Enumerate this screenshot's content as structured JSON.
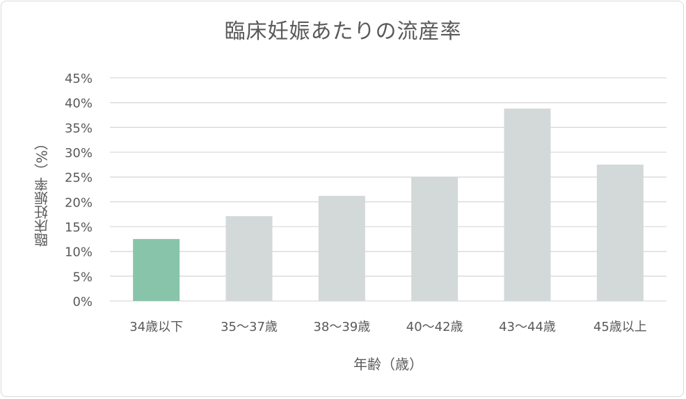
{
  "chart_data": {
    "type": "bar",
    "title": "臨床妊娠あたりの流産率",
    "xlabel": "年齢（歳）",
    "ylabel": "臨床妊娠率（%）",
    "categories": [
      "34歳以下",
      "35～37歳",
      "38～39歳",
      "40～42歳",
      "43～44歳",
      "45歳以上"
    ],
    "values": [
      12.5,
      17.1,
      21.2,
      25.0,
      38.8,
      27.5
    ],
    "ylim": [
      0,
      45
    ],
    "yticks": [
      0,
      5,
      10,
      15,
      20,
      25,
      30,
      35,
      40,
      45
    ],
    "ytick_labels": [
      "0%",
      "5%",
      "10%",
      "15%",
      "20%",
      "25%",
      "30%",
      "35%",
      "40%",
      "45%"
    ],
    "bar_colors": [
      "#88c4a9",
      "#d3d8d8",
      "#d3d8d8",
      "#d3d8d8",
      "#d3d8d8",
      "#d3d8d8"
    ],
    "grid": true,
    "legend": "none"
  }
}
